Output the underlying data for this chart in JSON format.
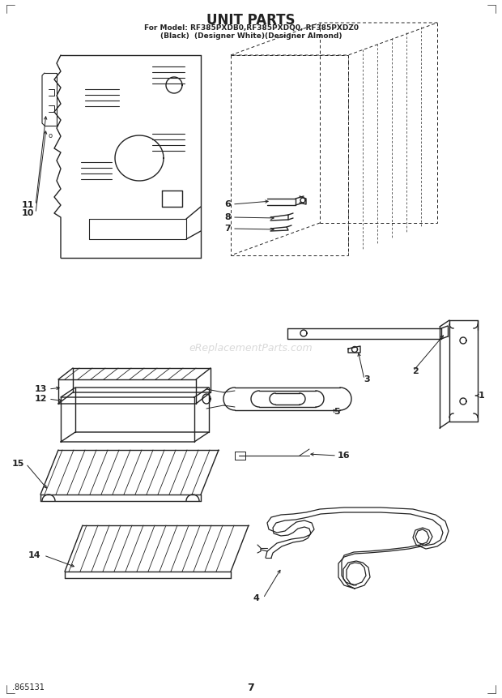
{
  "title": "UNIT PARTS",
  "subtitle1": "For Model: RF385PXDB0,RF385PXDQ0, RF385PXDZ0",
  "subtitle2": "(Black)  (Designer White)(Designer Almond)",
  "footer_left": ".865131",
  "footer_center": "7",
  "bg_color": "#ffffff",
  "line_color": "#222222",
  "watermark": "eReplacementParts.com"
}
